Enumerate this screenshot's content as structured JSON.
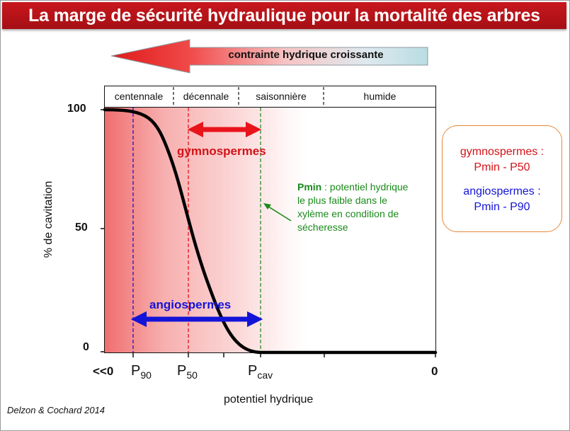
{
  "title": "La marge de sécurité hydraulique pour la mortalité des arbres",
  "stress_arrow": {
    "label": "contrainte hydrique croissante"
  },
  "bands": [
    {
      "label": "centennale"
    },
    {
      "label": "décennale"
    },
    {
      "label": "saisonnière"
    },
    {
      "label": "humide"
    }
  ],
  "y_axis": {
    "label": "% de cavitation",
    "ticks": [
      "100",
      "50",
      "0"
    ],
    "range": [
      0,
      100
    ]
  },
  "x_axis": {
    "label": "potentiel hydrique",
    "tick_left": "<<0",
    "tick_p90_main": "P",
    "tick_p90_sub": "90",
    "tick_p50_main": "P",
    "tick_p50_sub": "50",
    "tick_pcav_main": "P",
    "tick_pcav_sub": "cav",
    "tick_right": "0"
  },
  "margins": {
    "gymno_label": "gymnospermes",
    "angio_label": "angiospermes"
  },
  "pmin_note": {
    "bold": "Pmin",
    "text": " : potentiel hydrique le plus faible dans le xylème en condition de sécheresse"
  },
  "legend": {
    "gymno_line1": "gymnospermes :",
    "gymno_line2": "Pmin - P50",
    "angio_line1": "angiospermes :",
    "angio_line2": "Pmin - P90"
  },
  "credit": "Delzon & Cochard 2014",
  "colors": {
    "title_bg": "#b51218",
    "gymno": "#d41218",
    "angio": "#1414d8",
    "pmin": "#1a8a1a",
    "legend_border": "#e8893a"
  }
}
